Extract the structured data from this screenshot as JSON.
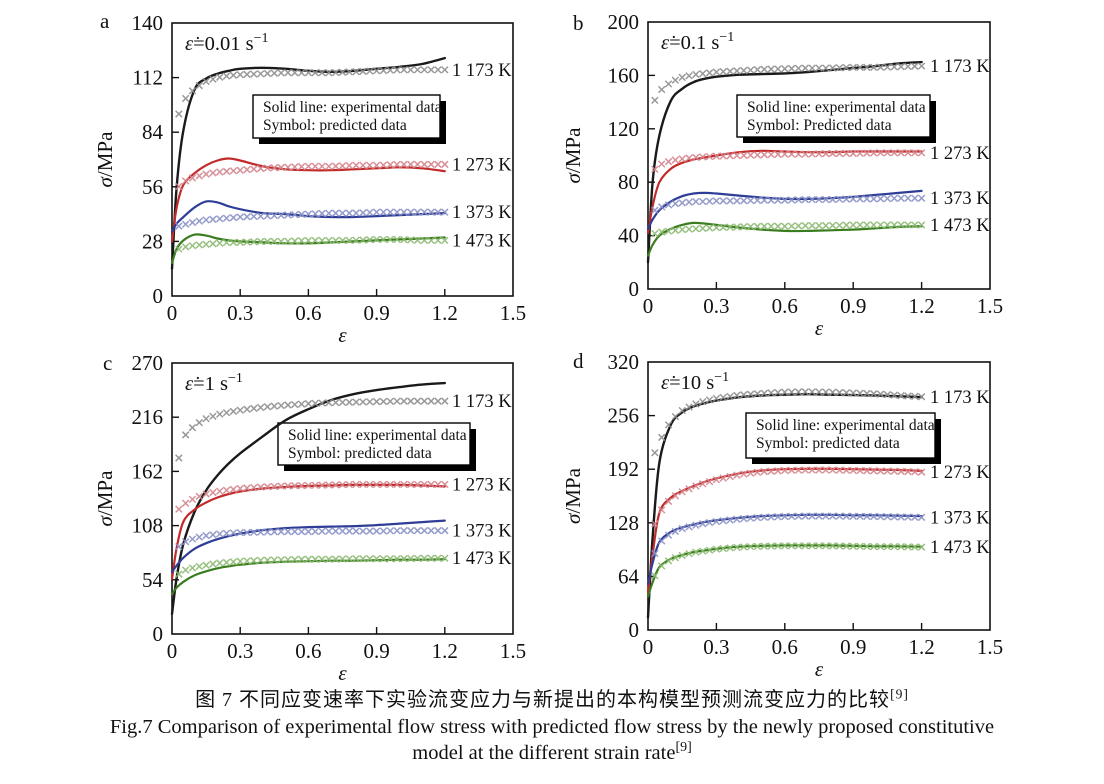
{
  "caption": {
    "zh": "图 7  不同应变速率下实验流变应力与新提出的本构模型预测流变应力的比较",
    "zh_sup": "[9]",
    "en1": "Fig.7 Comparison of experimental flow stress with predicted flow stress by the newly proposed constitutive",
    "en2": "model at the different strain rate",
    "en2_sup": "[9]"
  },
  "palette": {
    "1173": {
      "line": "#1a1a1a",
      "symbol": "#8f8f8f"
    },
    "1273": {
      "line": "#c22a2a",
      "symbol": "#d4858d"
    },
    "1373": {
      "line": "#2e3d96",
      "symbol": "#8a92c6"
    },
    "1473": {
      "line": "#3a7d1e",
      "symbol": "#8cba72"
    }
  },
  "chart_data": [
    {
      "id": "a",
      "panel_label": "a",
      "type": "line",
      "title_eps": "ε̇",
      "title_eq": "=0.01 s",
      "title_sup": "−1",
      "xlabel": "ε",
      "ylabel_italic": "σ",
      "ylabel_rest": "/MPa",
      "xlim": [
        0,
        1.5
      ],
      "ylim": [
        0,
        140
      ],
      "xticks": [
        0,
        0.3,
        0.6,
        0.9,
        1.2,
        1.5
      ],
      "xtick_labels": [
        "0",
        "0.3",
        "0.6",
        "0.9",
        "1.2",
        "1.5"
      ],
      "yticks": [
        0,
        28,
        56,
        84,
        112,
        140
      ],
      "ytick_labels": [
        "0",
        "28",
        "56",
        "84",
        "112",
        "140"
      ],
      "legend": [
        "Solid line: experimental data",
        "Symbol: predicted data"
      ],
      "x": [
        0,
        0.02,
        0.05,
        0.1,
        0.15,
        0.2,
        0.25,
        0.3,
        0.4,
        0.5,
        0.6,
        0.7,
        0.8,
        0.9,
        1.0,
        1.1,
        1.2
      ],
      "series": [
        {
          "name": "1 173 K",
          "temperature_K": 1173,
          "experimental": [
            14,
            55,
            85,
            106,
            111.5,
            114,
            115.5,
            116.5,
            117,
            116.5,
            115.5,
            115,
            115.5,
            116.5,
            117.5,
            119,
            122
          ],
          "predicted": [
            90,
            90,
            100,
            106.5,
            110,
            112,
            113,
            113.5,
            114,
            114.5,
            114.5,
            114.5,
            115,
            115.5,
            116,
            116,
            116
          ]
        },
        {
          "name": "1 273 K",
          "temperature_K": 1273,
          "experimental": [
            28,
            45,
            57,
            63,
            67,
            69.5,
            70.5,
            69.5,
            66.5,
            65,
            64.5,
            64.5,
            65,
            65.5,
            66,
            65.5,
            64
          ],
          "predicted": [
            55,
            55,
            58.5,
            61,
            62.5,
            63.5,
            64,
            64.5,
            65.5,
            66,
            66.5,
            66.5,
            67,
            67,
            67.5,
            67.5,
            67.5
          ]
        },
        {
          "name": "1 373 K",
          "temperature_K": 1373,
          "experimental": [
            33,
            37,
            40.5,
            45.5,
            48.5,
            48,
            46,
            44.5,
            42.5,
            42,
            41,
            40.5,
            40.5,
            41,
            41.5,
            42,
            42.5
          ],
          "predicted": [
            35.5,
            35.5,
            36.5,
            38,
            39,
            39.5,
            40,
            40.5,
            41,
            41.5,
            42,
            42.5,
            42.5,
            43,
            43,
            43,
            43
          ]
        },
        {
          "name": "1 473 K",
          "temperature_K": 1473,
          "experimental": [
            17,
            24,
            28.5,
            31.5,
            31,
            29.5,
            28.5,
            28,
            27.5,
            27,
            27,
            27.5,
            28,
            28.5,
            29,
            29.5,
            30
          ],
          "predicted": [
            23.5,
            23.5,
            25,
            26,
            26.5,
            27,
            27.5,
            27.5,
            28,
            28,
            28.5,
            28.5,
            28.5,
            29,
            29,
            28.5,
            28.5
          ]
        }
      ]
    },
    {
      "id": "b",
      "panel_label": "b",
      "type": "line",
      "title_eps": "ε̇",
      "title_eq": "=0.1 s",
      "title_sup": "−1",
      "xlabel": "ε",
      "ylabel_italic": "σ",
      "ylabel_rest": "/MPa",
      "xlim": [
        0,
        1.5
      ],
      "ylim": [
        0,
        200
      ],
      "xticks": [
        0,
        0.3,
        0.6,
        0.9,
        1.2,
        1.5
      ],
      "xtick_labels": [
        "0",
        "0.3",
        "0.6",
        "0.9",
        "1.2",
        "1.5"
      ],
      "yticks": [
        0,
        40,
        80,
        120,
        160,
        200
      ],
      "ytick_labels": [
        "0",
        "40",
        "80",
        "120",
        "160",
        "200"
      ],
      "legend": [
        "Solid line: experimental data",
        "Symbol: Predicted data"
      ],
      "x": [
        0,
        0.02,
        0.05,
        0.1,
        0.15,
        0.2,
        0.25,
        0.3,
        0.4,
        0.5,
        0.6,
        0.7,
        0.8,
        0.9,
        1.0,
        1.1,
        1.2
      ],
      "series": [
        {
          "name": "1 173 K",
          "temperature_K": 1173,
          "experimental": [
            20,
            80,
            115,
            141,
            150,
            155,
            157.5,
            159,
            160.5,
            161,
            161.5,
            162.5,
            164,
            165.5,
            167,
            169,
            170
          ],
          "predicted": [
            138,
            138,
            148,
            155,
            158.5,
            160.5,
            161.5,
            162.5,
            163.5,
            164.5,
            165,
            165.5,
            165.5,
            166,
            166,
            166.5,
            167
          ]
        },
        {
          "name": "1 273 K",
          "temperature_K": 1273,
          "experimental": [
            42,
            62,
            80,
            90,
            94.5,
            97,
            98.5,
            100,
            102.5,
            103.5,
            103,
            102.5,
            102.5,
            103,
            103,
            103,
            103
          ],
          "predicted": [
            88,
            88,
            93,
            96,
            97.5,
            98.5,
            99,
            99.5,
            100,
            100.5,
            101,
            101,
            101.5,
            101.5,
            102,
            102,
            102
          ]
        },
        {
          "name": "1 373 K",
          "temperature_K": 1373,
          "experimental": [
            45,
            52,
            59,
            65.5,
            69.5,
            71.5,
            72,
            71.5,
            70,
            68.5,
            67.5,
            67.5,
            68,
            69,
            70.5,
            72,
            73.5
          ],
          "predicted": [
            58,
            58,
            61,
            63.5,
            64.5,
            65.5,
            65.5,
            66,
            66,
            66.5,
            66.5,
            67,
            67,
            67.5,
            67.5,
            68,
            68
          ]
        },
        {
          "name": "1 473 K",
          "temperature_K": 1473,
          "experimental": [
            25,
            33,
            40,
            45,
            48,
            49.5,
            49,
            48,
            46,
            44.5,
            43.5,
            43.5,
            44,
            44.5,
            45.5,
            46.5,
            47
          ],
          "predicted": [
            41,
            41,
            42.5,
            43.5,
            44.5,
            45,
            45.5,
            46,
            46.5,
            47,
            47,
            47.5,
            47.5,
            48,
            48,
            48,
            48
          ]
        }
      ]
    },
    {
      "id": "c",
      "panel_label": "c",
      "type": "line",
      "title_eps": "ε̇",
      "title_eq": "=1 s",
      "title_sup": "−1",
      "xlabel": "ε",
      "ylabel_italic": "σ",
      "ylabel_rest": "/MPa",
      "xlim": [
        0,
        1.5
      ],
      "ylim": [
        0,
        270
      ],
      "xticks": [
        0,
        0.3,
        0.6,
        0.9,
        1.2,
        1.5
      ],
      "xtick_labels": [
        "0",
        "0.3",
        "0.6",
        "0.9",
        "1.2",
        "1.5"
      ],
      "yticks": [
        0,
        54,
        108,
        162,
        216,
        270
      ],
      "ytick_labels": [
        "0",
        "54",
        "108",
        "162",
        "216",
        "270"
      ],
      "legend": [
        "Solid line: experimental data",
        "Symbol: predicted data"
      ],
      "x": [
        0,
        0.02,
        0.05,
        0.1,
        0.15,
        0.2,
        0.25,
        0.3,
        0.4,
        0.5,
        0.6,
        0.7,
        0.8,
        0.9,
        1.0,
        1.1,
        1.2
      ],
      "series": [
        {
          "name": "1 173 K",
          "temperature_K": 1173,
          "experimental": [
            20,
            55,
            90,
            122,
            143,
            158,
            170,
            180,
            197,
            213,
            224,
            233,
            239,
            243,
            246,
            248.5,
            250
          ],
          "predicted": [
            150,
            165,
            196,
            208,
            214.5,
            218.5,
            221,
            223,
            226,
            228,
            229.5,
            230.5,
            231,
            231.5,
            232,
            232,
            232
          ]
        },
        {
          "name": "1 273 K",
          "temperature_K": 1273,
          "experimental": [
            55,
            85,
            112,
            124,
            131,
            136,
            139.5,
            142,
            145,
            146.5,
            147.5,
            148,
            148.5,
            148.5,
            148.5,
            148,
            147
          ],
          "predicted": [
            110,
            122,
            129,
            135.5,
            139.5,
            142,
            143.5,
            145,
            146.5,
            147.5,
            148,
            148.5,
            149,
            149,
            149,
            149,
            149
          ]
        },
        {
          "name": "1 373 K",
          "temperature_K": 1373,
          "experimental": [
            62,
            68,
            76,
            85,
            90.5,
            94.5,
            97.5,
            100,
            103.5,
            105.5,
            106.5,
            107,
            107.5,
            108.5,
            110,
            111.5,
            113
          ],
          "predicted": [
            80,
            85,
            91,
            95.5,
            98,
            99.5,
            100.5,
            101,
            101.5,
            102,
            102,
            102.5,
            102.5,
            102.5,
            103,
            103,
            103
          ]
        },
        {
          "name": "1 473 K",
          "temperature_K": 1473,
          "experimental": [
            40,
            46,
            52,
            58.5,
            62.5,
            65.5,
            67.5,
            69,
            71,
            72,
            72.5,
            73,
            73,
            73.5,
            74,
            74,
            74.5
          ],
          "predicted": [
            58,
            58,
            63,
            66.5,
            68.5,
            70.5,
            71.5,
            72.5,
            73.5,
            74,
            74.5,
            74.5,
            75,
            75,
            75,
            75.5,
            75.5
          ]
        }
      ]
    },
    {
      "id": "d",
      "panel_label": "d",
      "type": "line",
      "title_eps": "ε̇",
      "title_eq": "=10 s",
      "title_sup": "−1",
      "xlabel": "ε",
      "ylabel_italic": "σ",
      "ylabel_rest": "/MPa",
      "xlim": [
        0,
        1.5
      ],
      "ylim": [
        0,
        320
      ],
      "xticks": [
        0,
        0.3,
        0.6,
        0.9,
        1.2,
        1.5
      ],
      "xtick_labels": [
        "0",
        "0.3",
        "0.6",
        "0.9",
        "1.2",
        "1.5"
      ],
      "yticks": [
        0,
        64,
        128,
        192,
        256,
        320
      ],
      "ytick_labels": [
        "0",
        "64",
        "128",
        "192",
        "256",
        "320"
      ],
      "legend": [
        "Solid line: experimental data",
        "Symbol: predicted data"
      ],
      "x": [
        0,
        0.02,
        0.05,
        0.1,
        0.15,
        0.2,
        0.25,
        0.3,
        0.4,
        0.5,
        0.6,
        0.7,
        0.8,
        0.9,
        1.0,
        1.1,
        1.2
      ],
      "series": [
        {
          "name": "1 173 K",
          "temperature_K": 1173,
          "experimental": [
            15,
            110,
            200,
            245,
            260,
            267,
            271,
            274,
            278,
            280,
            281,
            281.5,
            281,
            280.5,
            280,
            279,
            278
          ],
          "predicted": [
            205,
            205,
            225,
            250,
            262,
            269,
            273.5,
            276.5,
            280.5,
            282.5,
            284,
            284.5,
            284,
            283,
            282,
            280,
            278.5
          ]
        },
        {
          "name": "1 273 K",
          "temperature_K": 1273,
          "experimental": [
            45,
            90,
            140,
            158,
            166,
            172,
            177,
            181,
            187,
            190.5,
            192,
            192.5,
            192.5,
            192,
            191.5,
            191,
            190
          ],
          "predicted": [
            120,
            120,
            140,
            157,
            165,
            171,
            175.5,
            179.5,
            185.5,
            189,
            190.5,
            191,
            191,
            190.5,
            190,
            189.5,
            188.5
          ]
        },
        {
          "name": "1 373 K",
          "temperature_K": 1373,
          "experimental": [
            55,
            80,
            105,
            117,
            122.5,
            126,
            129,
            131,
            134,
            136,
            137,
            137.5,
            137.5,
            137,
            137,
            136.5,
            136
          ],
          "predicted": [
            85,
            85,
            104,
            115.5,
            121,
            124.5,
            127.5,
            129.5,
            132.5,
            134.5,
            135.5,
            136,
            136,
            135.8,
            135.5,
            135,
            134.5
          ]
        },
        {
          "name": "1 473 K",
          "temperature_K": 1473,
          "experimental": [
            40,
            57,
            75,
            85,
            89.5,
            93,
            95,
            97,
            99.5,
            100.5,
            101,
            101,
            101,
            100.5,
            100,
            100,
            99.5
          ],
          "predicted": [
            60,
            60,
            74.5,
            84.5,
            89,
            92.5,
            94.5,
            96.5,
            99,
            100,
            100.5,
            100.5,
            100.5,
            100,
            99.5,
            99.5,
            99
          ]
        }
      ]
    }
  ]
}
